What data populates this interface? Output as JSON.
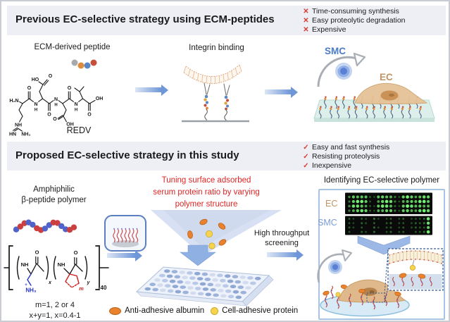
{
  "s1": {
    "title": "Previous EC-selective strategy using ECM-peptides",
    "cons": [
      {
        "mark": "✕",
        "text": "Time-consuming synthesis"
      },
      {
        "mark": "✕",
        "text": "Easy proteolytic degradation"
      },
      {
        "mark": "✕",
        "text": "Expensive"
      }
    ],
    "ecm_caption": "ECM-derived peptide",
    "peptide_name": "REDV",
    "integrin_caption": "Integrin binding",
    "smc": "SMC",
    "ec": "EC"
  },
  "s2": {
    "title": "Proposed EC-selective strategy in this study",
    "pros": [
      {
        "mark": "✓",
        "text": "Easy and fast synthesis"
      },
      {
        "mark": "✓",
        "text": "Resisting proteolysis"
      },
      {
        "mark": "✓",
        "text": "Inexpensive"
      }
    ],
    "amphi1": "Amphiphilic",
    "amphi2": "β-peptide polymer",
    "note1": "m=1, 2 or 4",
    "note2": "x+y=1, x=0.4-1",
    "tuning1": "Tuning surface adsorbed",
    "tuning2": "serum protein ratio by varying",
    "tuning3": "polymer structure",
    "hts1": "High throughput",
    "hts2": "screening",
    "legend_albumin": "Anti-adhesive albumin",
    "legend_protein": "Cell-adhesive protein",
    "panel_title": "Identifying EC-selective polymer",
    "panel_ec": "EC",
    "panel_smc": "SMC"
  },
  "chem": {
    "h2n": "H₂N",
    "ho": "HO",
    "o": "O",
    "oh": "OH",
    "n": "N",
    "h": "H",
    "nh": "NH",
    "hn": "HN",
    "nh2": "NH₂",
    "nh3": "NH₃",
    "plus": "+",
    "x": "x",
    "y": "y",
    "dp": "40",
    "m": "m"
  },
  "colors": {
    "header_bg": "#edeff5",
    "accent_red": "#d93a30",
    "text_red": "#e02424",
    "smc_blue": "#4a7bc8",
    "ec_tan": "#bf9464",
    "arrow_blue": "#6f97d8",
    "albumin_orange": "#e8822e",
    "protein_yellow": "#f6d54c",
    "microarray_green": "#35e03a"
  }
}
